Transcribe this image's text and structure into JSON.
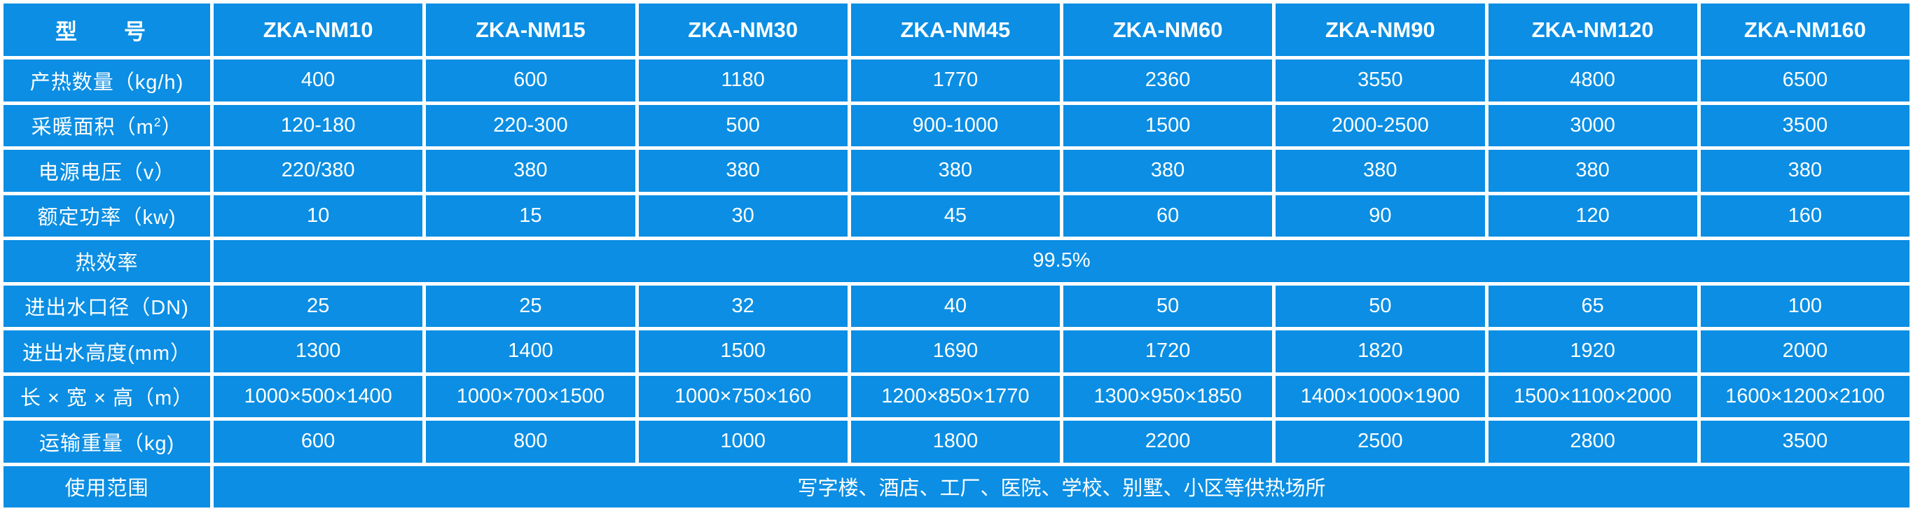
{
  "table": {
    "header_label": "型　号",
    "models": [
      "ZKA-NM10",
      "ZKA-NM15",
      "ZKA-NM30",
      "ZKA-NM45",
      "ZKA-NM60",
      "ZKA-NM90",
      "ZKA-NM120",
      "ZKA-NM160"
    ],
    "rows": [
      {
        "label": "产热数量（kg/h)",
        "values": [
          "400",
          "600",
          "1180",
          "1770",
          "2360",
          "3550",
          "4800",
          "6500"
        ]
      },
      {
        "label_pre": "采暖面积（m",
        "label_sup": "2",
        "label_post": "）",
        "values": [
          "120-180",
          "220-300",
          "500",
          "900-1000",
          "1500",
          "2000-2500",
          "3000",
          "3500"
        ]
      },
      {
        "label": "电源电压（v）",
        "values": [
          "220/380",
          "380",
          "380",
          "380",
          "380",
          "380",
          "380",
          "380"
        ]
      },
      {
        "label": "额定功率（kw)",
        "values": [
          "10",
          "15",
          "30",
          "45",
          "60",
          "90",
          "120",
          "160"
        ]
      },
      {
        "label": "热效率",
        "merged_value": "99.5%"
      },
      {
        "label": "进出水口径（DN)",
        "values": [
          "25",
          "25",
          "32",
          "40",
          "50",
          "50",
          "65",
          "100"
        ]
      },
      {
        "label": "进出水高度(mm）",
        "values": [
          "1300",
          "1400",
          "1500",
          "1690",
          "1720",
          "1820",
          "1920",
          "2000"
        ]
      },
      {
        "label": "长 × 宽 × 高（m）",
        "values": [
          "1000×500×1400",
          "1000×700×1500",
          "1000×750×160",
          "1200×850×1770",
          "1300×950×1850",
          "1400×1000×1900",
          "1500×1100×2000",
          "1600×1200×2100"
        ]
      },
      {
        "label": "运输重量（kg)",
        "values": [
          "600",
          "800",
          "1000",
          "1800",
          "2200",
          "2500",
          "2800",
          "3500"
        ]
      },
      {
        "label": "使用范围",
        "merged_value": "写字楼、酒店、工厂、医院、学校、别墅、小区等供热场所"
      }
    ]
  },
  "colors": {
    "background": "#0b8ee3",
    "grid": "#ffffff",
    "text": "#ffffff"
  }
}
